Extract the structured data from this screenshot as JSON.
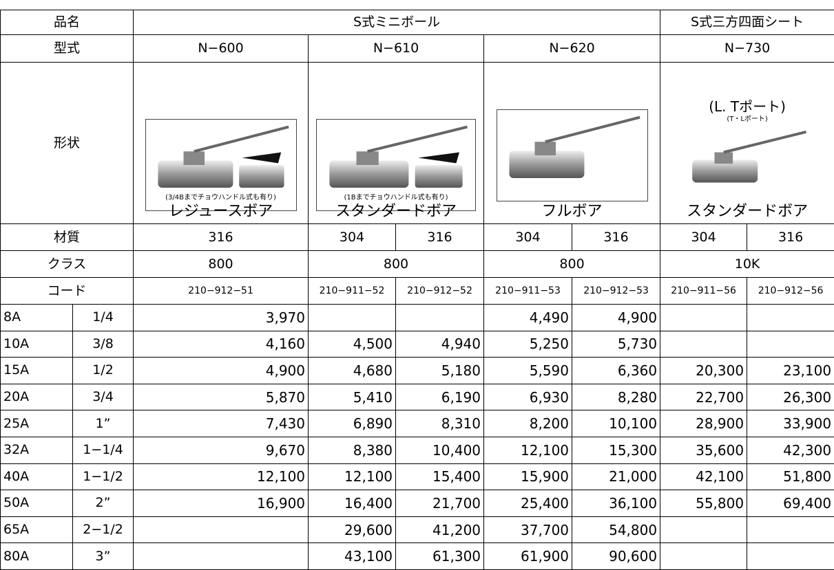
{
  "table": {
    "header_rows": [
      [
        "品名",
        "S式ミニボール",
        "S式三方四面シート"
      ],
      [
        "型式",
        "N−600",
        "N−610",
        "N−620",
        "N−730"
      ],
      [
        "材質",
        "316",
        "304",
        "316",
        "304",
        "316",
        "304",
        "316"
      ],
      [
        "クラス",
        "800",
        "800",
        "800",
        "10K"
      ],
      [
        "コード",
        "210−912−51",
        "210−911−52",
        "210−912−52",
        "210−911−53",
        "210−912−53",
        "210−911−56",
        "210−912−56"
      ]
    ],
    "shape": {
      "label": "形状",
      "items": [
        {
          "note": "(3/4Bまでチョウハンドル式も有り)",
          "bore": "レジュースボア"
        },
        {
          "note": "(1Bまでチョウハンドル式も有り)",
          "bore": "スタンダードボア"
        },
        {
          "bore": "フルボア"
        },
        {
          "port": "(L. Tポート)",
          "note": "(T・Lポート)",
          "bore": "スタンダードボア"
        }
      ]
    },
    "rows": [
      [
        "8A",
        "1/4",
        "3,970",
        null,
        null,
        "4,490",
        "4,900",
        null,
        null
      ],
      [
        "10A",
        "3/8",
        "4,160",
        "4,500",
        "4,940",
        "5,250",
        "5,730",
        null,
        null
      ],
      [
        "15A",
        "1/2",
        "4,900",
        "4,680",
        "5,180",
        "5,590",
        "6,360",
        "20,300",
        "23,100"
      ],
      [
        "20A",
        "3/4",
        "5,870",
        "5,410",
        "6,190",
        "6,930",
        "8,280",
        "22,700",
        "26,300"
      ],
      [
        "25A",
        "1”",
        "7,430",
        "6,890",
        "8,310",
        "8,200",
        "10,100",
        "28,900",
        "33,900"
      ],
      [
        "32A",
        "1−1/4",
        "9,670",
        "8,380",
        "10,400",
        "12,100",
        "15,300",
        "35,600",
        "42,300"
      ],
      [
        "40A",
        "1−1/2",
        "12,100",
        "12,100",
        "15,400",
        "15,900",
        "21,000",
        "42,100",
        "51,800"
      ],
      [
        "50A",
        "2”",
        "16,900",
        "16,400",
        "21,700",
        "25,400",
        "36,100",
        "55,800",
        "69,400"
      ],
      [
        "65A",
        "2−1/2",
        null,
        "29,600",
        "41,200",
        "37,700",
        "54,800",
        null,
        null
      ],
      [
        "80A",
        "3”",
        null,
        "43,100",
        "61,300",
        "61,900",
        "90,600",
        null,
        null
      ]
    ]
  }
}
